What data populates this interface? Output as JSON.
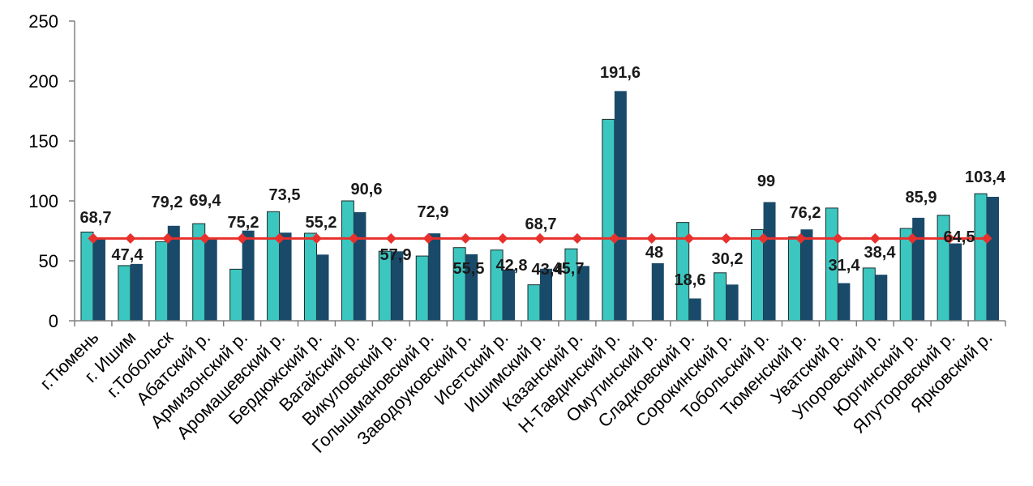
{
  "colors": {
    "series1": "#3cc6c0",
    "series2": "#1a4a6a",
    "average": "#e8302c",
    "axis": "#808080"
  },
  "chart_data": {
    "type": "bar",
    "title": "",
    "xlabel": "",
    "ylabel": "",
    "ylim": [
      0,
      250
    ],
    "yticks": [
      "0",
      "50",
      "100",
      "150",
      "200",
      "250"
    ],
    "grid": false,
    "legend": "none",
    "categories": [
      "г.Тюмень",
      "г. Ишим",
      "г.Тобольск",
      "Абатский р.",
      "Армизонский р.",
      "Аромашевский р.",
      "Бердюжский р.",
      "Вагайский р.",
      "Викуловский р.",
      "Голышмановский р.",
      "Заводоуковский р.",
      "Исетский р.",
      "Ишимский р.",
      "Казанский р.",
      "Н-Тавдинский р.",
      "Омутинский р.",
      "Сладковский р.",
      "Сорокинский р.",
      "Тобольский р.",
      "Тюменский р.",
      "Уватский р.",
      "Упоровский р.",
      "Юргинский р.",
      "Ялуторовский р.",
      "Ярковский р."
    ],
    "series": [
      {
        "values": [
          74,
          46,
          66,
          81,
          43,
          91,
          73,
          100,
          58,
          54,
          61,
          59,
          30,
          60,
          168,
          0,
          82,
          40,
          76,
          70,
          94,
          44,
          77,
          88,
          106
        ]
      },
      {
        "values": [
          68.7,
          47.4,
          79.2,
          69.4,
          75.2,
          73.5,
          55.2,
          90.6,
          57.9,
          72.9,
          55.5,
          42.8,
          43.4,
          45.7,
          191.6,
          48,
          18.6,
          30.2,
          99,
          76.2,
          31.4,
          38.4,
          85.9,
          64.5,
          103.4
        ]
      },
      {
        "type": "line",
        "values": [
          68.7,
          68.7,
          68.7,
          68.7,
          68.7,
          68.7,
          68.7,
          68.7,
          68.7,
          68.7,
          68.7,
          68.7,
          68.7,
          68.7,
          68.7,
          68.7,
          68.7,
          68.7,
          68.7,
          68.7,
          68.7,
          68.7,
          68.7,
          68.7,
          68.7
        ]
      }
    ],
    "data_labels": [
      "68,7",
      "47,4",
      "79,2",
      "69,4",
      "75,2",
      "73,5",
      "55,2",
      "90,6",
      "57,9",
      "72,9",
      "55,5",
      "42,8",
      "68,7",
      "43,4",
      "45,7",
      "191,6",
      "48",
      "18,6",
      "30,2",
      "99",
      "76,2",
      "31,4",
      "38,4",
      "85,9",
      "64,5",
      "103,4"
    ]
  }
}
